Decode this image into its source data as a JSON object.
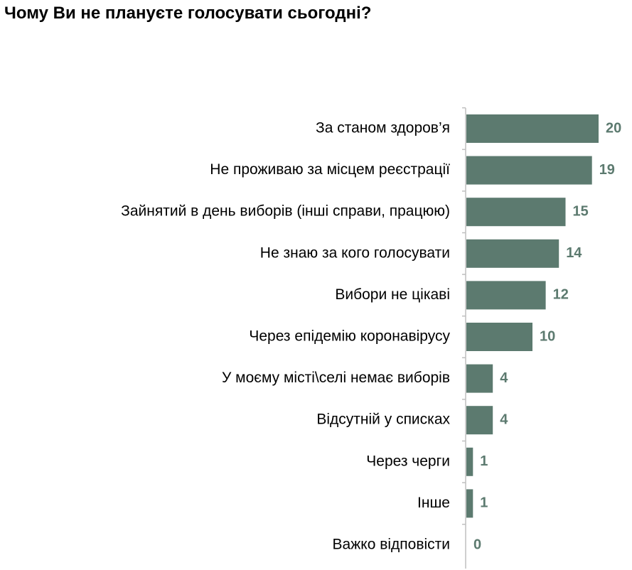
{
  "chart_data": {
    "type": "bar",
    "orientation": "horizontal",
    "title": "Чому Ви не плануєте голосувати сьогодні?",
    "categories": [
      "За станом здоров’я",
      "Не проживаю за місцем реєстрації",
      "Зайнятий в день виборів (інші справи, працюю)",
      "Не знаю за кого голосувати",
      "Вибори не цікаві",
      "Через епідемію коронавірусу",
      "У моєму місті\\селі немає виборів",
      "Відсутній у списках",
      "Через черги",
      "Інше",
      "Важко відповісти"
    ],
    "values": [
      20,
      19,
      15,
      14,
      12,
      10,
      4,
      4,
      1,
      1,
      0
    ],
    "value_labels": [
      "20",
      "19",
      "15",
      "14",
      "12",
      "10",
      "4",
      "4",
      "1",
      "1",
      "0"
    ],
    "xlim": [
      0,
      20
    ],
    "grid": false,
    "legend": "none",
    "colors": {
      "bar": "#5c7a6f",
      "value_label": "#5c7a6f",
      "axis": "#bfbfbf"
    }
  }
}
